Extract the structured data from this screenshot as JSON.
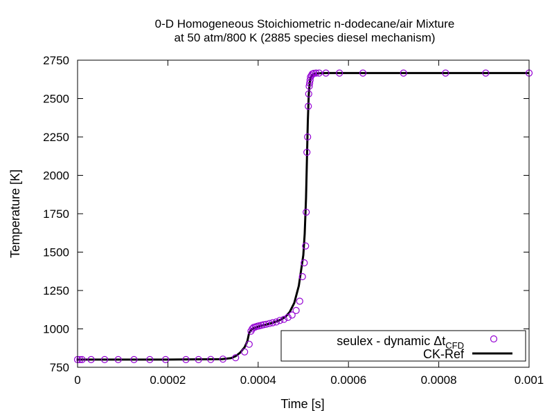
{
  "chart_data": {
    "type": "scatter",
    "title_lines": [
      "0-D Homogeneous Stoichiometric n-dodecane/air Mixture",
      "at 50 atm/800 K (2885 species diesel mechanism)"
    ],
    "xlabel": "Time [s]",
    "ylabel": "Temperature [K]",
    "xlim": [
      0,
      0.001
    ],
    "ylim": [
      750,
      2750
    ],
    "xticks": [
      0,
      0.0002,
      0.0004,
      0.0006,
      0.0008,
      0.001
    ],
    "xtick_labels": [
      "0",
      "0.0002",
      "0.0004",
      "0.0006",
      "0.0008",
      "0.001"
    ],
    "yticks": [
      750,
      1000,
      1250,
      1500,
      1750,
      2000,
      2250,
      2500,
      2750
    ],
    "ytick_labels": [
      "750",
      "1000",
      "1250",
      "1500",
      "1750",
      "2000",
      "2250",
      "2500",
      "2750"
    ],
    "grid": false,
    "legend_position": "bottom-right",
    "series": [
      {
        "name": "seulex - dynamic Δt",
        "name_subscript": "CFD",
        "kind": "markers",
        "marker": "open-circle",
        "color": "#9400d3",
        "x": [
          0,
          5e-06,
          1e-05,
          3e-05,
          6e-05,
          9e-05,
          0.000125,
          0.00016,
          0.000195,
          0.00024,
          0.000268,
          0.000295,
          0.000322,
          0.00035,
          0.00037,
          0.00038,
          0.000384,
          0.000387,
          0.00039,
          0.000394,
          0.000398,
          0.000402,
          0.000407,
          0.000412,
          0.000418,
          0.000425,
          0.000432,
          0.00044,
          0.000448,
          0.000457,
          0.000466,
          0.000475,
          0.000484,
          0.000492,
          0.000498,
          0.000502,
          0.000505,
          0.0005065,
          0.000508,
          0.0005095,
          0.000511,
          0.000512,
          0.000513,
          0.000514,
          0.000515,
          0.000516,
          0.000518,
          0.00052,
          0.000523,
          0.000528,
          0.000535,
          0.00055,
          0.00058,
          0.000632,
          0.000722,
          0.000815,
          0.000904,
          0.001
        ],
        "y": [
          800,
          800,
          800,
          800,
          800,
          800,
          800,
          800,
          800,
          800,
          800,
          801,
          803,
          812,
          850,
          900,
          985,
          1000,
          1010,
          1013,
          1017,
          1020,
          1023,
          1027,
          1030,
          1035,
          1040,
          1045,
          1055,
          1062,
          1075,
          1090,
          1120,
          1180,
          1340,
          1430,
          1540,
          1760,
          2150,
          2250,
          2450,
          2530,
          2580,
          2600,
          2620,
          2640,
          2650,
          2660,
          2664,
          2666,
          2666,
          2666,
          2666,
          2666,
          2666,
          2666,
          2666,
          2666
        ]
      },
      {
        "name": "CK-Ref",
        "kind": "line",
        "color": "#000000",
        "x": [
          0,
          0.0002,
          0.00032,
          0.00034,
          0.00035,
          0.00036,
          0.00037,
          0.000376,
          0.00038,
          0.000385,
          0.00039,
          0.0004,
          0.00041,
          0.00042,
          0.00043,
          0.00044,
          0.00045,
          0.00046,
          0.00047,
          0.00048,
          0.00049,
          0.0005,
          0.000503,
          0.000506,
          0.000508,
          0.00051,
          0.000512,
          0.000514,
          0.000516,
          0.00052,
          0.000525,
          0.000535,
          0.00055,
          0.0006,
          0.001
        ],
        "y": [
          800,
          800,
          803,
          810,
          822,
          845,
          880,
          920,
          975,
          995,
          1005,
          1015,
          1022,
          1030,
          1038,
          1048,
          1060,
          1078,
          1110,
          1170,
          1280,
          1480,
          1620,
          1850,
          2100,
          2350,
          2520,
          2600,
          2635,
          2655,
          2662,
          2665,
          2666,
          2666,
          2666
        ]
      }
    ]
  }
}
